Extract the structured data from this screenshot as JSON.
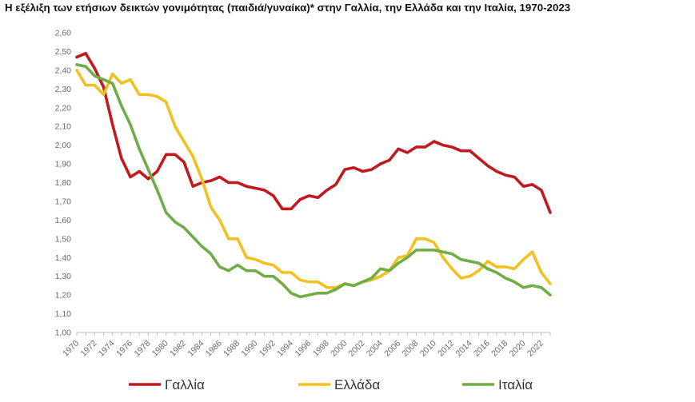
{
  "title": "Η εξέλιξη των ετήσιων δεικτών γονιμότητας (παιδιά/γυναίκα)* στην Γαλλία, την Ελλάδα και την Ιταλία, 1970-2023",
  "chart_data": {
    "type": "line",
    "title": "Η εξέλιξη των ετήσιων δεικτών γονιμότητας (παιδιά/γυναίκα)* στην Γαλλία, την Ελλάδα και την Ιταλία, 1970-2023",
    "xlabel": "",
    "ylabel": "",
    "ylim": [
      1.0,
      2.6
    ],
    "ytick_step": 0.1,
    "ytick_labels": [
      "1,00",
      "1,10",
      "1,20",
      "1,30",
      "1,40",
      "1,50",
      "1,60",
      "1,70",
      "1,80",
      "1,90",
      "2,00",
      "2,10",
      "2,20",
      "2,30",
      "2,40",
      "2,50",
      "2,60"
    ],
    "x": [
      1970,
      1971,
      1972,
      1973,
      1974,
      1975,
      1976,
      1977,
      1978,
      1979,
      1980,
      1981,
      1982,
      1983,
      1984,
      1985,
      1986,
      1987,
      1988,
      1989,
      1990,
      1991,
      1992,
      1993,
      1994,
      1995,
      1996,
      1997,
      1998,
      1999,
      2000,
      2001,
      2002,
      2003,
      2004,
      2005,
      2006,
      2007,
      2008,
      2009,
      2010,
      2011,
      2012,
      2013,
      2014,
      2015,
      2016,
      2017,
      2018,
      2019,
      2020,
      2021,
      2022,
      2023
    ],
    "xtick_labels": [
      "1970",
      "1972",
      "1974",
      "1976",
      "1978",
      "1980",
      "1982",
      "1984",
      "1986",
      "1988",
      "1990",
      "1992",
      "1994",
      "1996",
      "1998",
      "2000",
      "2002",
      "2004",
      "2006",
      "2008",
      "2010",
      "2012",
      "2014",
      "2016",
      "2018",
      "2020",
      "2022"
    ],
    "grid": false,
    "legend_position": "bottom",
    "series": [
      {
        "name": "Γαλλία",
        "color": "#c0191e",
        "values": [
          2.47,
          2.49,
          2.41,
          2.31,
          2.11,
          1.93,
          1.83,
          1.86,
          1.82,
          1.86,
          1.95,
          1.95,
          1.91,
          1.78,
          1.8,
          1.81,
          1.83,
          1.8,
          1.8,
          1.78,
          1.77,
          1.76,
          1.73,
          1.66,
          1.66,
          1.71,
          1.73,
          1.72,
          1.76,
          1.79,
          1.87,
          1.88,
          1.86,
          1.87,
          1.9,
          1.92,
          1.98,
          1.96,
          1.99,
          1.99,
          2.02,
          2.0,
          1.99,
          1.97,
          1.97,
          1.93,
          1.89,
          1.86,
          1.84,
          1.83,
          1.78,
          1.79,
          1.76,
          1.64
        ]
      },
      {
        "name": "Ελλάδα",
        "color": "#f2c01f",
        "values": [
          2.4,
          2.32,
          2.32,
          2.27,
          2.38,
          2.33,
          2.35,
          2.27,
          2.27,
          2.26,
          2.23,
          2.1,
          2.02,
          1.94,
          1.82,
          1.67,
          1.6,
          1.5,
          1.5,
          1.4,
          1.39,
          1.37,
          1.36,
          1.32,
          1.32,
          1.28,
          1.27,
          1.27,
          1.24,
          1.24,
          1.26,
          1.25,
          1.27,
          1.28,
          1.3,
          1.33,
          1.4,
          1.41,
          1.5,
          1.5,
          1.48,
          1.4,
          1.34,
          1.29,
          1.3,
          1.33,
          1.38,
          1.35,
          1.35,
          1.34,
          1.39,
          1.43,
          1.32,
          1.26
        ]
      },
      {
        "name": "Ιταλία",
        "color": "#70ad47",
        "values": [
          2.43,
          2.42,
          2.37,
          2.35,
          2.33,
          2.21,
          2.11,
          1.98,
          1.87,
          1.76,
          1.64,
          1.59,
          1.56,
          1.51,
          1.46,
          1.42,
          1.35,
          1.33,
          1.36,
          1.33,
          1.33,
          1.3,
          1.3,
          1.26,
          1.21,
          1.19,
          1.2,
          1.21,
          1.21,
          1.23,
          1.26,
          1.25,
          1.27,
          1.29,
          1.34,
          1.33,
          1.37,
          1.4,
          1.44,
          1.44,
          1.44,
          1.43,
          1.42,
          1.39,
          1.38,
          1.37,
          1.34,
          1.32,
          1.29,
          1.27,
          1.24,
          1.25,
          1.24,
          1.2
        ]
      }
    ]
  }
}
